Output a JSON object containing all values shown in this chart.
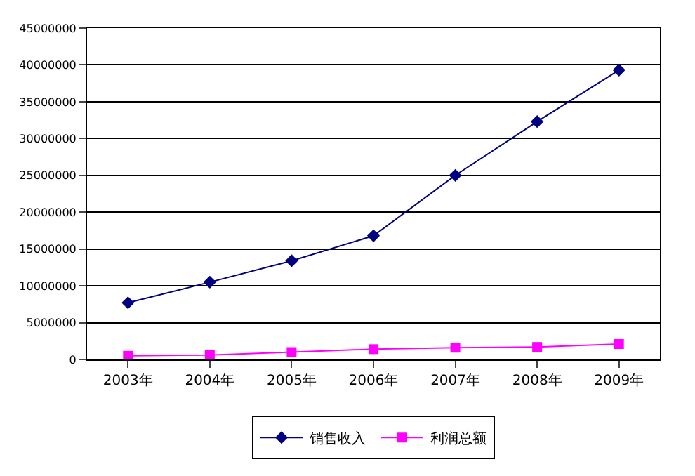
{
  "chart_data": {
    "type": "line",
    "categories": [
      "2003年",
      "2004年",
      "2005年",
      "2006年",
      "2007年",
      "2008年",
      "2009年"
    ],
    "series": [
      {
        "name": "销售收入",
        "color": "#000080",
        "marker": "diamond",
        "values": [
          7700000,
          10500000,
          13400000,
          16800000,
          25000000,
          32300000,
          39300000
        ]
      },
      {
        "name": "利润总额",
        "color": "#ff00ff",
        "marker": "square",
        "values": [
          500000,
          600000,
          1000000,
          1400000,
          1600000,
          1700000,
          2100000
        ]
      }
    ],
    "ylim": [
      0,
      45000000
    ],
    "yticks": [
      0,
      5000000,
      10000000,
      15000000,
      20000000,
      25000000,
      30000000,
      35000000,
      40000000,
      45000000
    ],
    "grid": "y",
    "legend": "bottom",
    "line_style": "solid"
  }
}
